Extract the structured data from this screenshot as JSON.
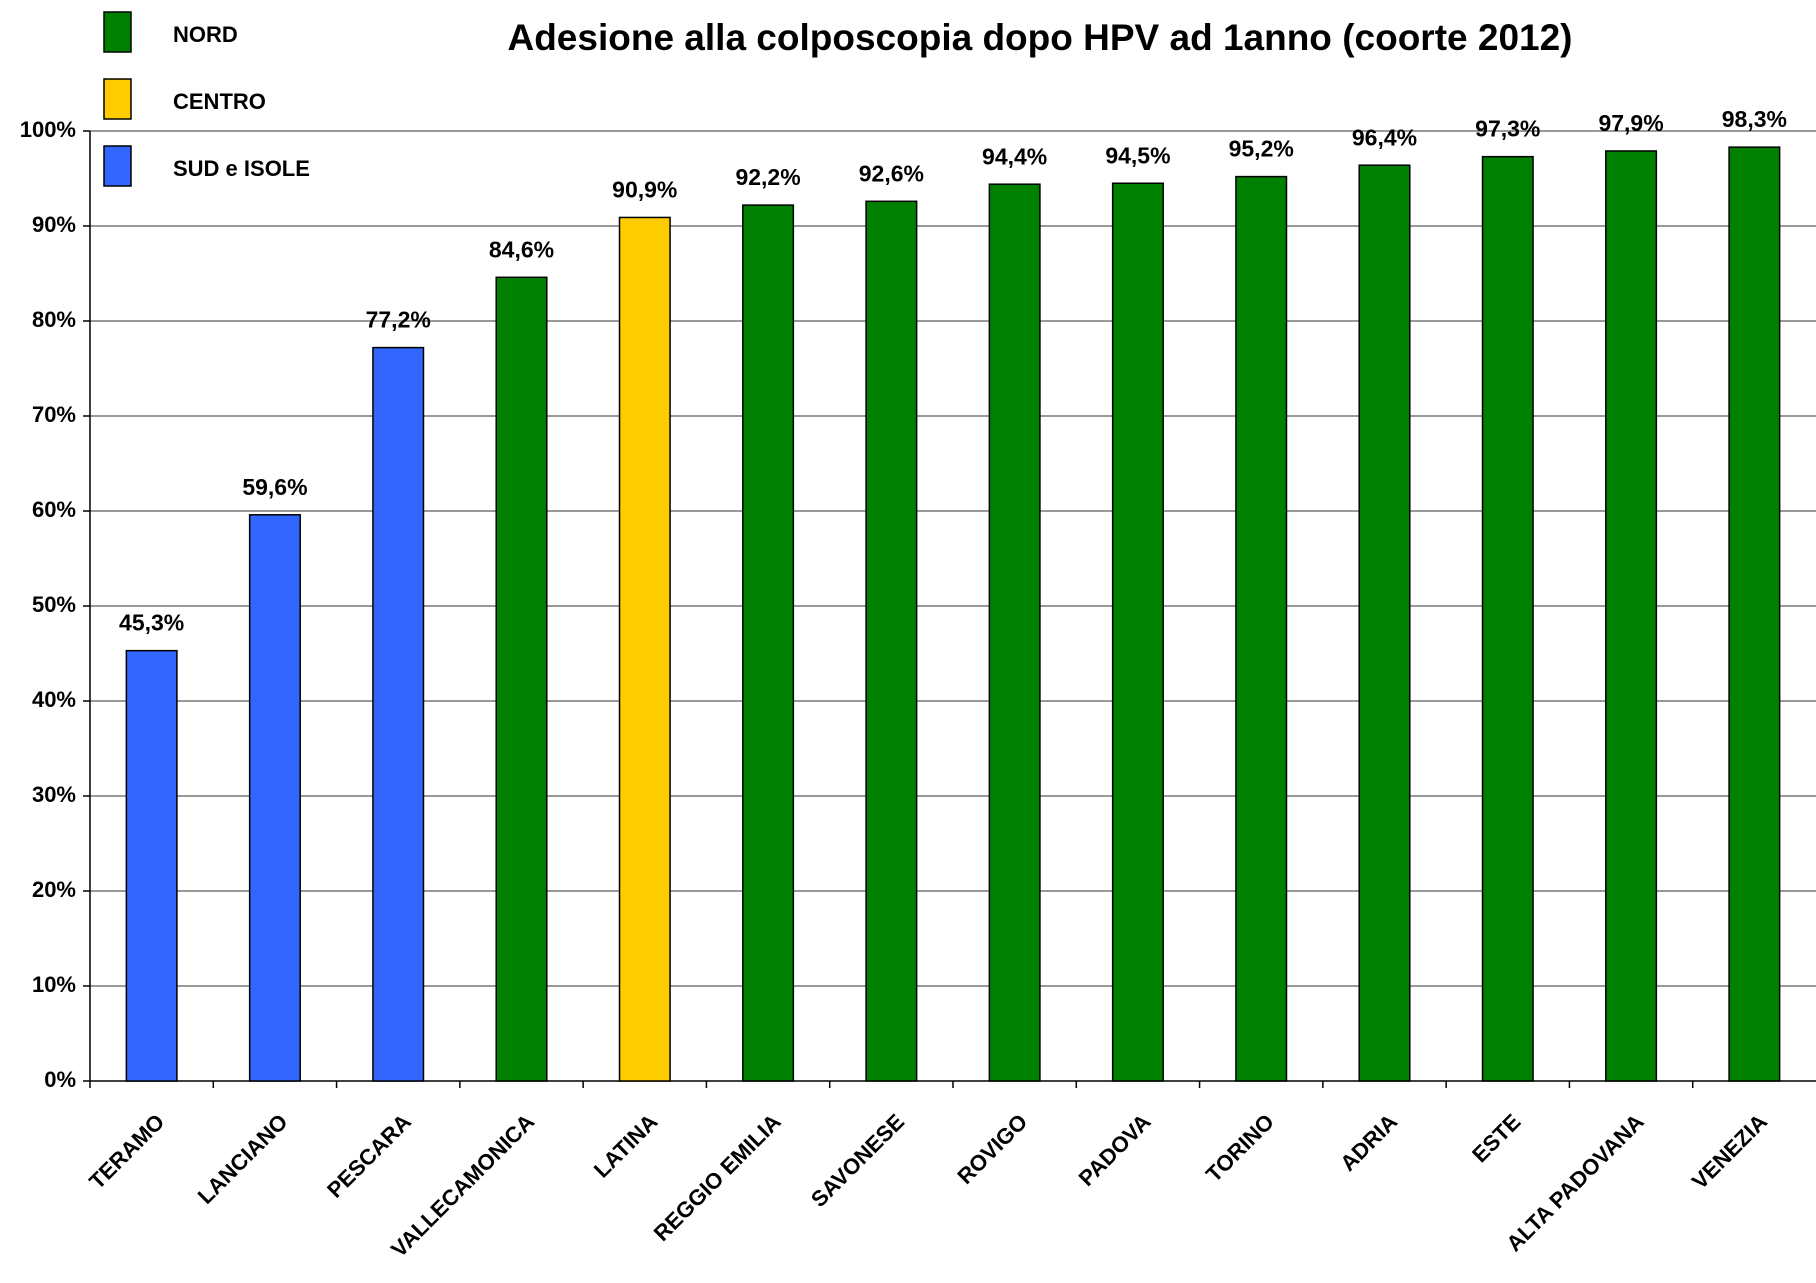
{
  "chart_data": {
    "type": "bar",
    "title": "Adesione alla colposcopia dopo HPV ad 1anno (coorte 2012)",
    "legend": [
      {
        "name": "NORD",
        "color": "#008000"
      },
      {
        "name": "CENTRO",
        "color": "#ffcc00"
      },
      {
        "name": "SUD e ISOLE",
        "color": "#3366ff"
      }
    ],
    "categories": [
      "TERAMO",
      "LANCIANO",
      "PESCARA",
      "VALLECAMONICA",
      "LATINA",
      "REGGIO EMILIA",
      "SAVONESE",
      "ROVIGO",
      "PADOVA",
      "TORINO",
      "ADRIA",
      "ESTE",
      "ALTA PADOVANA",
      "VENEZIA"
    ],
    "groups": [
      2,
      2,
      2,
      0,
      1,
      0,
      0,
      0,
      0,
      0,
      0,
      0,
      0,
      0
    ],
    "values": [
      45.3,
      59.6,
      77.2,
      84.6,
      90.9,
      92.2,
      92.6,
      94.4,
      94.5,
      95.2,
      96.4,
      97.3,
      97.9,
      98.3
    ],
    "value_labels": [
      "45,3%",
      "59,6%",
      "77,2%",
      "84,6%",
      "90,9%",
      "92,2%",
      "92,6%",
      "94,4%",
      "94,5%",
      "95,2%",
      "96,4%",
      "97,3%",
      "97,9%",
      "98,3%"
    ],
    "ylim": [
      0,
      100
    ],
    "yticks": [
      {
        "value": 0,
        "label": "0%"
      },
      {
        "value": 10,
        "label": "10%"
      },
      {
        "value": 20,
        "label": "20%"
      },
      {
        "value": 30,
        "label": "30%"
      },
      {
        "value": 40,
        "label": "40%"
      },
      {
        "value": 50,
        "label": "50%"
      },
      {
        "value": 60,
        "label": "60%"
      },
      {
        "value": 70,
        "label": "70%"
      },
      {
        "value": 80,
        "label": "80%"
      },
      {
        "value": 90,
        "label": "90%"
      },
      {
        "value": 100,
        "label": "100%"
      }
    ],
    "grid": true
  }
}
